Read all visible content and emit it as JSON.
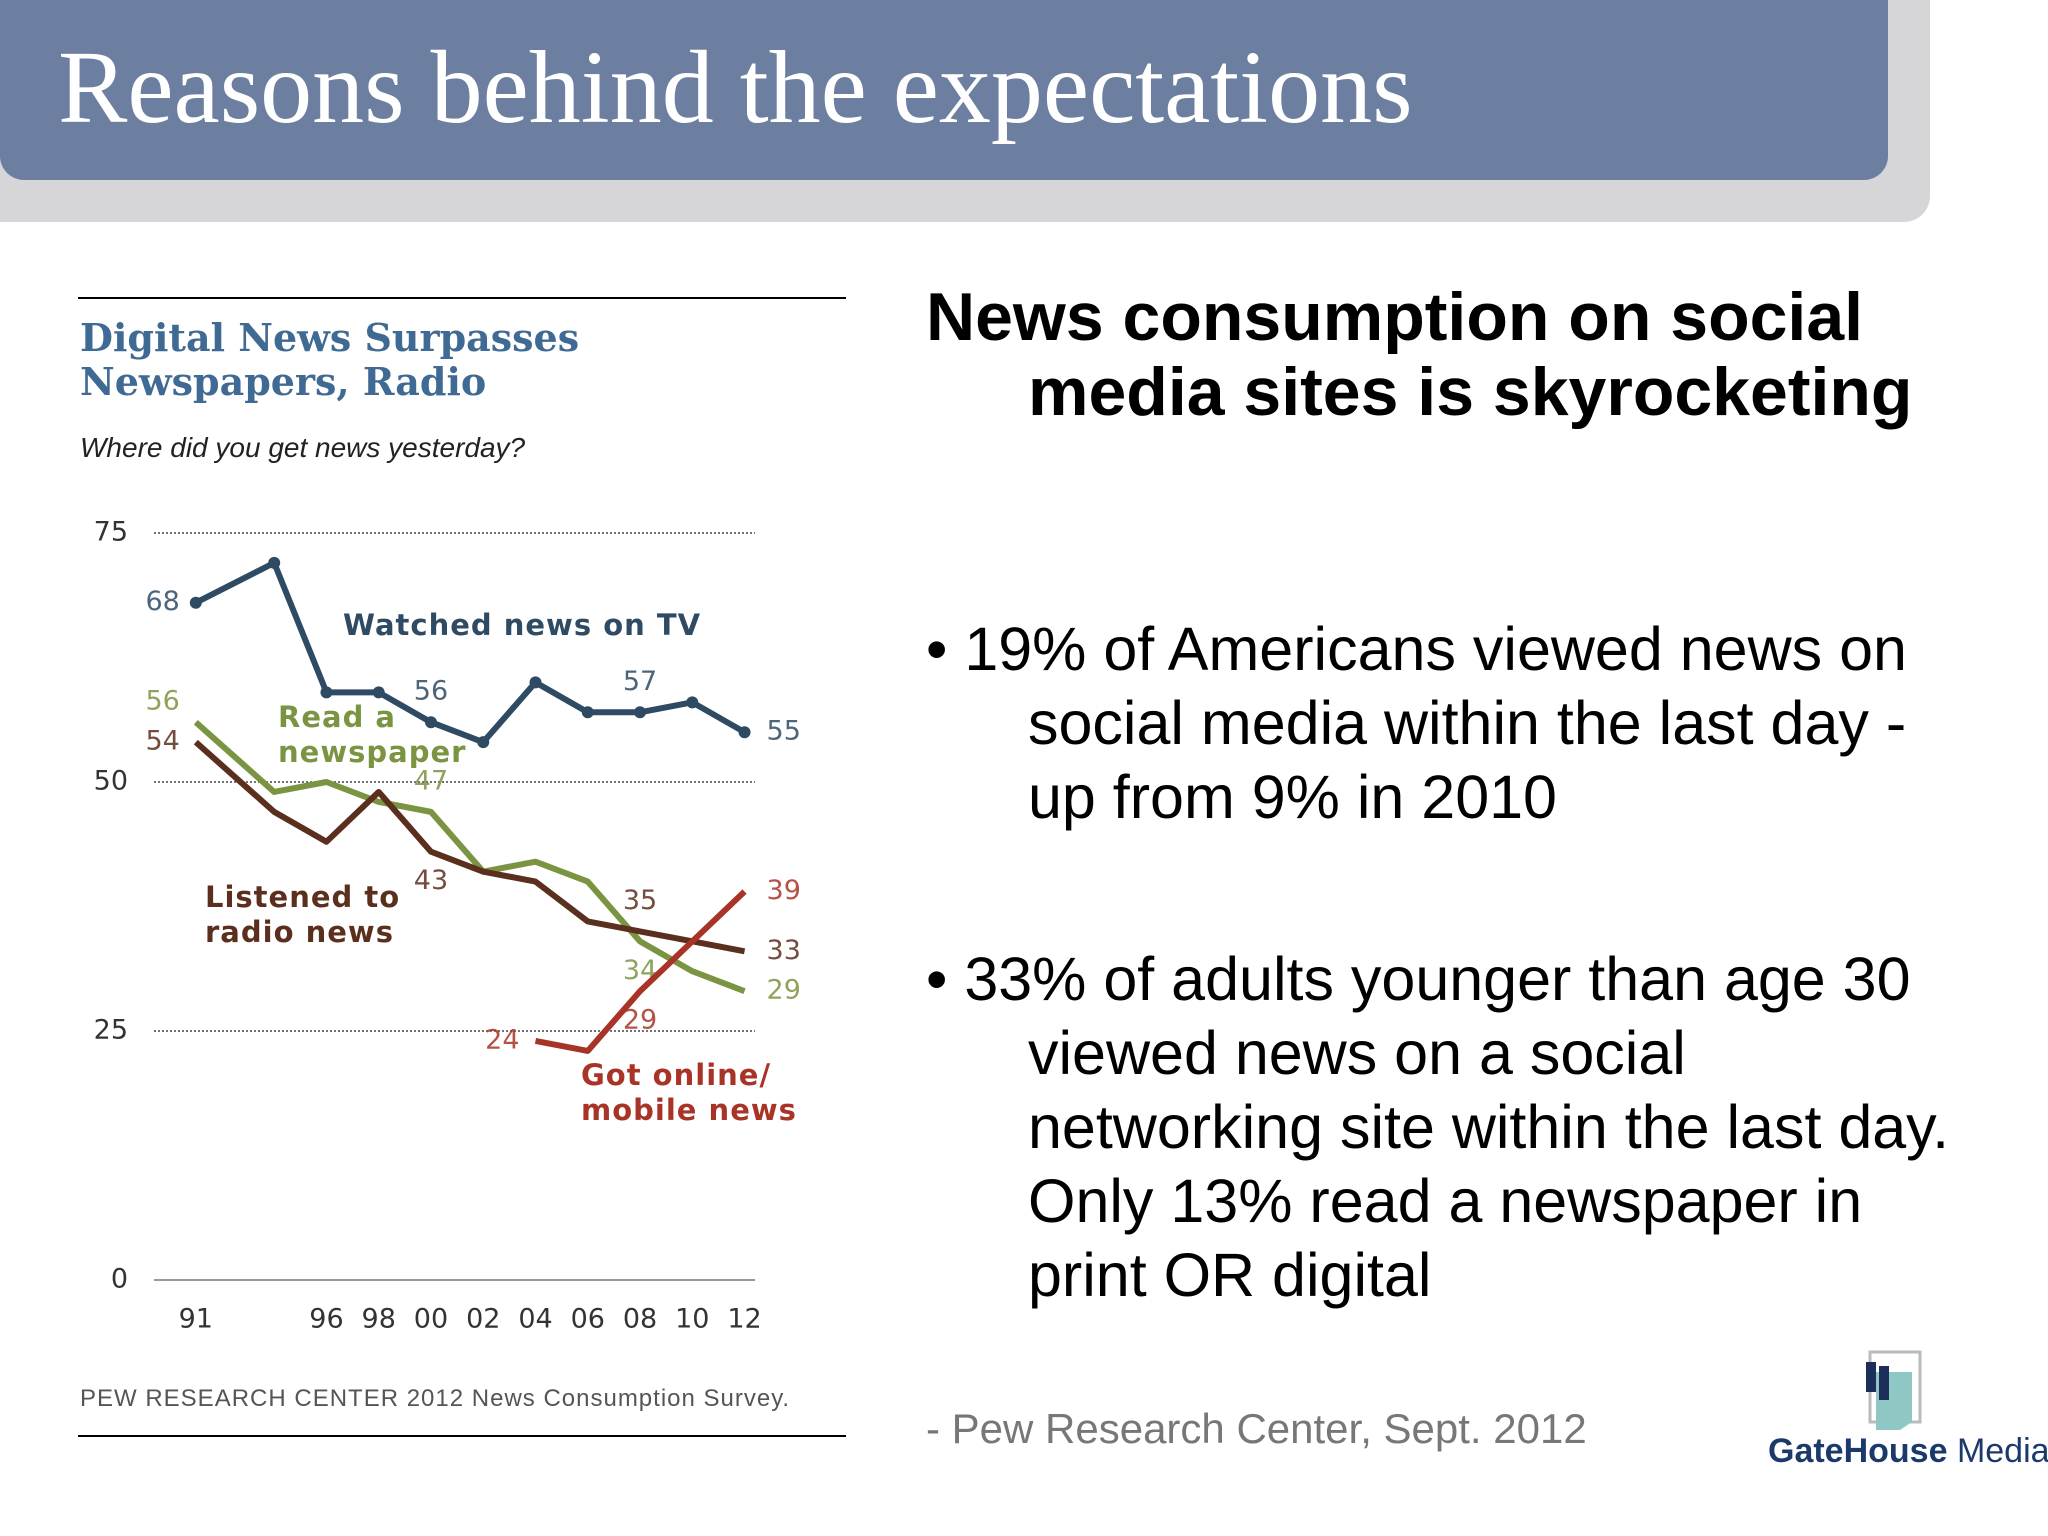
{
  "slide": {
    "title": "Reasons behind the expectations",
    "heading": "News consumption on social media sites is skyrocketing",
    "bullets": [
      "19% of Americans viewed news on social media within the last day - up from 9% in 2010",
      "33% of adults younger than age 30 viewed news on a social networking site within the last day. Only 13% read a newspaper in print OR digital"
    ],
    "source": "- Pew Research Center, Sept. 2012",
    "logo": {
      "bold": "GateHouse",
      "regular": "Media"
    }
  },
  "chart_data": {
    "type": "line",
    "title": "Digital News Surpasses Newspapers, Radio",
    "subtitle": "Where did you get news yesterday?",
    "source": "PEW RESEARCH CENTER 2012 News Consumption Survey.",
    "x": [
      1991,
      1994,
      1996,
      1998,
      2000,
      2002,
      2004,
      2006,
      2008,
      2010,
      2012
    ],
    "xlim": [
      1989.4,
      2012.4
    ],
    "xticks": [
      {
        "value": 1991,
        "label": "91"
      },
      {
        "value": 1996,
        "label": "96"
      },
      {
        "value": 1998,
        "label": "98"
      },
      {
        "value": 2000,
        "label": "00"
      },
      {
        "value": 2002,
        "label": "02"
      },
      {
        "value": 2004,
        "label": "04"
      },
      {
        "value": 2006,
        "label": "06"
      },
      {
        "value": 2008,
        "label": "08"
      },
      {
        "value": 2010,
        "label": "10"
      },
      {
        "value": 2012,
        "label": "12"
      }
    ],
    "ylim": [
      0,
      75
    ],
    "yticks": [
      0,
      25,
      50,
      75
    ],
    "grid": true,
    "series": [
      {
        "name": "Watched news on TV",
        "color": "#2f4b63",
        "markers": true,
        "values": [
          68,
          72,
          59,
          59,
          56,
          54,
          60,
          57,
          57,
          58,
          55
        ],
        "value_labels": [
          "68",
          null,
          null,
          null,
          "56",
          null,
          null,
          null,
          "57",
          null,
          "55"
        ]
      },
      {
        "name": "Read a newspaper",
        "color": "#7b9442",
        "markers": false,
        "values": [
          56,
          49,
          50,
          48,
          47,
          41,
          42,
          40,
          34,
          31,
          29
        ],
        "value_labels": [
          "56",
          null,
          null,
          null,
          "47",
          null,
          null,
          null,
          "34",
          null,
          "29"
        ]
      },
      {
        "name": "Listened to radio news",
        "color": "#5b2f1d",
        "markers": false,
        "values": [
          54,
          47,
          44,
          49,
          43,
          41,
          40,
          36,
          35,
          34,
          33
        ],
        "value_labels": [
          "54",
          null,
          null,
          null,
          "43",
          null,
          null,
          null,
          "35",
          null,
          "33"
        ]
      },
      {
        "name": "Got online/ mobile news",
        "color": "#a83427",
        "markers": false,
        "values": [
          null,
          null,
          null,
          null,
          null,
          null,
          24,
          23,
          29,
          34,
          39
        ],
        "value_labels": [
          null,
          null,
          null,
          null,
          null,
          null,
          "24",
          null,
          "29",
          null,
          "39"
        ]
      }
    ]
  }
}
